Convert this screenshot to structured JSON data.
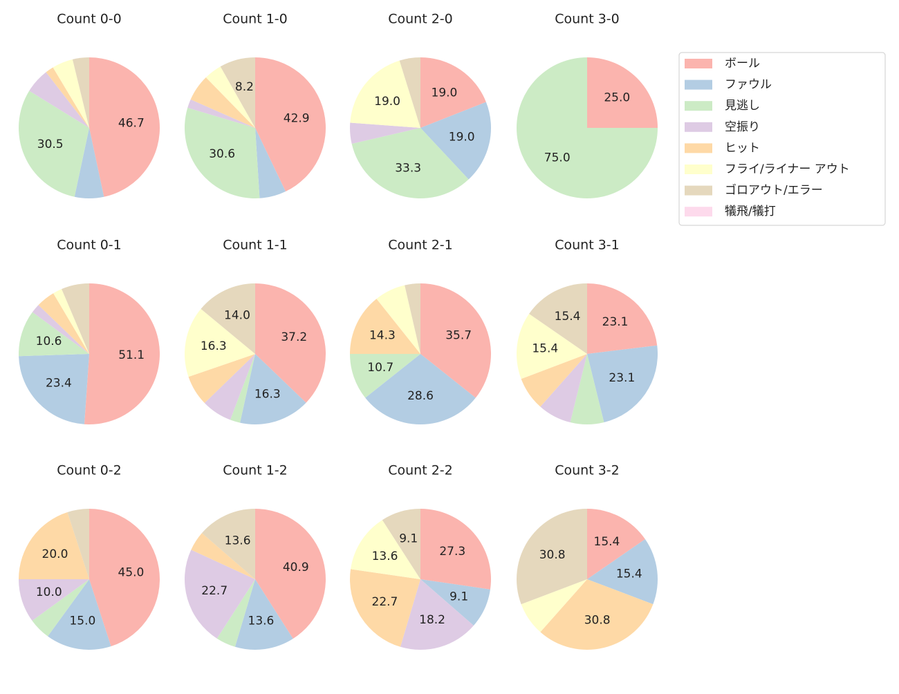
{
  "legend": {
    "entries": [
      {
        "name": "ボール",
        "color": "#fbb4ae"
      },
      {
        "name": "ファウル",
        "color": "#b3cde3"
      },
      {
        "name": "見逃し",
        "color": "#ccebc5"
      },
      {
        "name": "空振り",
        "color": "#decbe4"
      },
      {
        "name": "ヒット",
        "color": "#fed9a6"
      },
      {
        "name": "フライ/ライナー アウト",
        "color": "#ffffcc"
      },
      {
        "name": "ゴロアウト/エラー",
        "color": "#e5d8bd"
      },
      {
        "name": "犠飛/犠打",
        "color": "#fddaec"
      }
    ]
  },
  "chart_data": [
    {
      "type": "pie",
      "title": "Count 0-0",
      "values": [
        46.7,
        6.7,
        30.5,
        5.7,
        1.9,
        4.8,
        3.8,
        0
      ],
      "value_labels": [
        "46.7",
        null,
        "30.5",
        null,
        null,
        null,
        null,
        null
      ]
    },
    {
      "type": "pie",
      "title": "Count 1-0",
      "values": [
        42.9,
        6.1,
        30.6,
        2.0,
        6.1,
        4.1,
        8.2,
        0
      ],
      "value_labels": [
        "42.9",
        null,
        "30.6",
        null,
        null,
        null,
        "8.2",
        null
      ]
    },
    {
      "type": "pie",
      "title": "Count 2-0",
      "values": [
        19.0,
        19.0,
        33.3,
        4.8,
        0,
        19.0,
        4.8,
        0
      ],
      "value_labels": [
        "19.0",
        "19.0",
        "33.3",
        null,
        null,
        "19.0",
        null,
        null
      ]
    },
    {
      "type": "pie",
      "title": "Count 3-0",
      "values": [
        25.0,
        0,
        75.0,
        0,
        0,
        0,
        0,
        0
      ],
      "value_labels": [
        "25.0",
        null,
        "75.0",
        null,
        null,
        null,
        null,
        null
      ]
    },
    {
      "type": "pie",
      "title": "Count 0-1",
      "values": [
        51.1,
        23.4,
        10.6,
        2.1,
        4.3,
        2.1,
        6.4,
        0
      ],
      "value_labels": [
        "51.1",
        "23.4",
        "10.6",
        null,
        null,
        null,
        null,
        null
      ]
    },
    {
      "type": "pie",
      "title": "Count 1-1",
      "values": [
        37.2,
        16.3,
        2.3,
        7.0,
        7.0,
        16.3,
        14.0,
        0
      ],
      "value_labels": [
        "37.2",
        "16.3",
        null,
        null,
        null,
        "16.3",
        "14.0",
        null
      ]
    },
    {
      "type": "pie",
      "title": "Count 2-1",
      "values": [
        35.7,
        28.6,
        10.7,
        0,
        14.3,
        7.1,
        3.6,
        0
      ],
      "value_labels": [
        "35.7",
        "28.6",
        "10.7",
        null,
        "14.3",
        null,
        null,
        null
      ]
    },
    {
      "type": "pie",
      "title": "Count 3-1",
      "values": [
        23.1,
        23.1,
        7.7,
        7.7,
        7.7,
        15.4,
        15.4,
        0
      ],
      "value_labels": [
        "23.1",
        "23.1",
        null,
        null,
        null,
        "15.4",
        "15.4",
        null
      ]
    },
    {
      "type": "pie",
      "title": "Count 0-2",
      "values": [
        45.0,
        15.0,
        5.0,
        10.0,
        20.0,
        0,
        5.0,
        0
      ],
      "value_labels": [
        "45.0",
        "15.0",
        null,
        "10.0",
        "20.0",
        null,
        null,
        null
      ]
    },
    {
      "type": "pie",
      "title": "Count 1-2",
      "values": [
        40.9,
        13.6,
        4.5,
        22.7,
        4.5,
        0,
        13.6,
        0
      ],
      "value_labels": [
        "40.9",
        "13.6",
        null,
        "22.7",
        null,
        null,
        "13.6",
        null
      ]
    },
    {
      "type": "pie",
      "title": "Count 2-2",
      "values": [
        27.3,
        9.1,
        0,
        18.2,
        22.7,
        13.6,
        9.1,
        0
      ],
      "value_labels": [
        "27.3",
        "9.1",
        null,
        "18.2",
        "22.7",
        "13.6",
        "9.1",
        null
      ]
    },
    {
      "type": "pie",
      "title": "Count 3-2",
      "values": [
        15.4,
        15.4,
        0,
        0,
        30.8,
        7.7,
        30.8,
        0
      ],
      "value_labels": [
        "15.4",
        "15.4",
        null,
        null,
        "30.8",
        null,
        "30.8",
        null
      ]
    }
  ]
}
